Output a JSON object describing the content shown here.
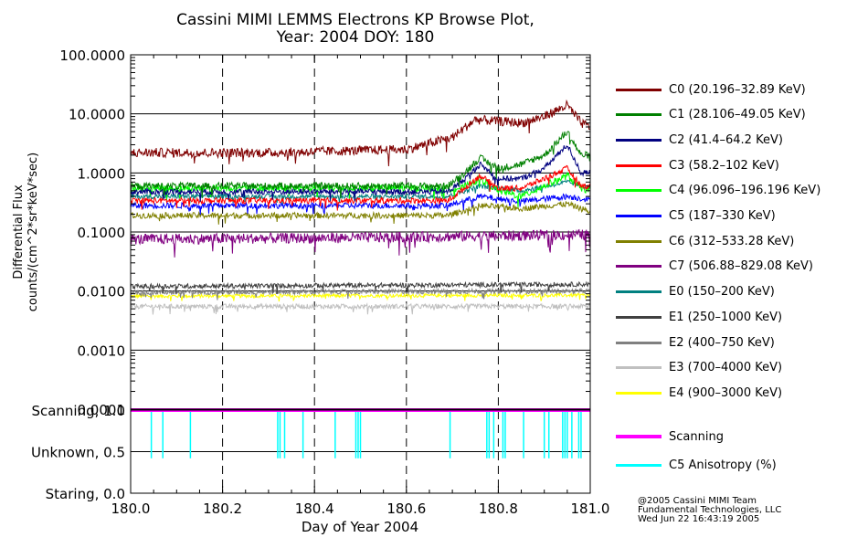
{
  "chart_data": [
    {
      "type": "line",
      "title": "Cassini MIMI LEMMS Electrons KP Browse Plot,",
      "subtitle": "Year: 2004 DOY: 180",
      "ylabel_line1": "Differential Flux",
      "ylabel_line2": "counts/(cm^2*sr*keV*sec)",
      "yscale": "log",
      "ylim": [
        0.0001,
        100
      ],
      "xlim": [
        180.0,
        181.0
      ],
      "grid": true,
      "y_tick_labels": [
        "100.0000",
        "10.0000",
        "1.0000",
        "0.1000",
        "0.0100",
        "0.0010",
        "0.0001"
      ],
      "y_tick_values": [
        100,
        10,
        1,
        0.1,
        0.01,
        0.001,
        0.0001
      ],
      "x_dashed_lines": [
        180.2,
        180.4,
        180.6,
        180.8
      ],
      "series": [
        {
          "name": "C0 (20.196–32.89 KeV)",
          "color": "#800000",
          "noise": 0.08,
          "points": [
            [
              180.0,
              2.2
            ],
            [
              180.3,
              2.2
            ],
            [
              180.6,
              2.5
            ],
            [
              180.7,
              4.0
            ],
            [
              180.75,
              8.0
            ],
            [
              180.8,
              7.5
            ],
            [
              180.85,
              7.0
            ],
            [
              180.9,
              9.0
            ],
            [
              180.95,
              14.0
            ],
            [
              180.98,
              7.0
            ],
            [
              181.0,
              6.0
            ]
          ]
        },
        {
          "name": "C1 (28.106–49.05 KeV)",
          "color": "#008000",
          "noise": 0.06,
          "points": [
            [
              180.0,
              0.6
            ],
            [
              180.69,
              0.6
            ],
            [
              180.72,
              0.9
            ],
            [
              180.76,
              1.8
            ],
            [
              180.8,
              1.2
            ],
            [
              180.85,
              1.4
            ],
            [
              180.9,
              2.0
            ],
            [
              180.95,
              5.0
            ],
            [
              180.98,
              2.0
            ],
            [
              181.0,
              2.0
            ]
          ]
        },
        {
          "name": "C2 (41.4–64.2 KeV)",
          "color": "#000080",
          "noise": 0.05,
          "points": [
            [
              180.0,
              0.48
            ],
            [
              180.69,
              0.48
            ],
            [
              180.72,
              0.7
            ],
            [
              180.76,
              1.4
            ],
            [
              180.8,
              0.8
            ],
            [
              180.85,
              0.8
            ],
            [
              180.9,
              1.2
            ],
            [
              180.95,
              3.0
            ],
            [
              180.98,
              1.0
            ],
            [
              181.0,
              1.0
            ]
          ]
        },
        {
          "name": "C3 (58.2–102 KeV)",
          "color": "#ff0000",
          "noise": 0.05,
          "points": [
            [
              180.0,
              0.34
            ],
            [
              180.69,
              0.34
            ],
            [
              180.72,
              0.5
            ],
            [
              180.76,
              0.9
            ],
            [
              180.8,
              0.55
            ],
            [
              180.85,
              0.55
            ],
            [
              180.9,
              0.8
            ],
            [
              180.95,
              1.2
            ],
            [
              180.98,
              0.6
            ],
            [
              181.0,
              0.6
            ]
          ]
        },
        {
          "name": "C4 (96.096–196.196 KeV)",
          "color": "#00ff00",
          "noise": 0.06,
          "points": [
            [
              180.0,
              0.55
            ],
            [
              180.69,
              0.55
            ],
            [
              180.72,
              0.55
            ],
            [
              180.76,
              0.8
            ],
            [
              180.8,
              0.5
            ],
            [
              180.85,
              0.4
            ],
            [
              180.9,
              0.6
            ],
            [
              180.95,
              0.9
            ],
            [
              180.98,
              0.55
            ],
            [
              181.0,
              0.5
            ]
          ]
        },
        {
          "name": "C5 (187–330 KeV)",
          "color": "#0000ff",
          "noise": 0.05,
          "points": [
            [
              180.0,
              0.28
            ],
            [
              180.69,
              0.28
            ],
            [
              180.76,
              0.4
            ],
            [
              180.85,
              0.33
            ],
            [
              180.95,
              0.4
            ],
            [
              181.0,
              0.35
            ]
          ]
        },
        {
          "name": "C6 (312–533.28 KeV)",
          "color": "#808000",
          "noise": 0.05,
          "points": [
            [
              180.0,
              0.19
            ],
            [
              180.69,
              0.19
            ],
            [
              180.76,
              0.28
            ],
            [
              180.85,
              0.25
            ],
            [
              180.95,
              0.3
            ],
            [
              181.0,
              0.22
            ]
          ]
        },
        {
          "name": "C7 (506.88–829.08 KeV)",
          "color": "#800080",
          "noise": 0.09,
          "points": [
            [
              180.0,
              0.075
            ],
            [
              180.5,
              0.08
            ],
            [
              181.0,
              0.09
            ]
          ]
        },
        {
          "name": "E0 (150–200 KeV)",
          "color": "#008080",
          "noise": 0.04,
          "points": [
            [
              180.0,
              0.4
            ],
            [
              180.69,
              0.4
            ],
            [
              180.76,
              0.6
            ],
            [
              180.85,
              0.5
            ],
            [
              180.95,
              0.7
            ],
            [
              181.0,
              0.55
            ]
          ]
        },
        {
          "name": "E1 (250–1000 KeV)",
          "color": "#404040",
          "noise": 0.04,
          "points": [
            [
              180.0,
              0.012
            ],
            [
              181.0,
              0.013
            ]
          ]
        },
        {
          "name": "E2 (400–750 KeV)",
          "color": "#808080",
          "noise": 0.04,
          "points": [
            [
              180.0,
              0.0095
            ],
            [
              181.0,
              0.01
            ]
          ]
        },
        {
          "name": "E3 (700–4000 KeV)",
          "color": "#c0c0c0",
          "noise": 0.04,
          "points": [
            [
              180.0,
              0.0055
            ],
            [
              181.0,
              0.0055
            ]
          ]
        },
        {
          "name": "E4 (900–3000 KeV)",
          "color": "#ffff00",
          "noise": 0.03,
          "points": [
            [
              180.0,
              0.0082
            ],
            [
              181.0,
              0.0085
            ]
          ]
        }
      ]
    },
    {
      "type": "line",
      "xlabel": "Day of Year 2004",
      "xlim": [
        180.0,
        181.0
      ],
      "ylim": [
        0.0,
        1.0
      ],
      "x_tick_labels": [
        "180.0",
        "180.2",
        "180.4",
        "180.6",
        "180.8",
        "181.0"
      ],
      "x_tick_values": [
        180.0,
        180.2,
        180.4,
        180.6,
        180.8,
        181.0
      ],
      "y_tick_labels": [
        "Scanning, 1.0",
        "Unknown, 0.5",
        "Staring, 0.0"
      ],
      "y_tick_values": [
        1.0,
        0.5,
        0.0
      ],
      "series": [
        {
          "name": "Scanning",
          "color": "#ff00ff",
          "value": 1.0
        },
        {
          "name": "C5 Anisotropy (%)",
          "color": "#00ffff",
          "baseline": 1.0,
          "spikes": [
            [
              180.045,
              0.42
            ],
            [
              180.07,
              0.42
            ],
            [
              180.13,
              0.42
            ],
            [
              180.32,
              0.42
            ],
            [
              180.325,
              0.42
            ],
            [
              180.335,
              0.42
            ],
            [
              180.375,
              0.42
            ],
            [
              180.445,
              0.42
            ],
            [
              180.49,
              0.42
            ],
            [
              180.495,
              0.42
            ],
            [
              180.5,
              0.42
            ],
            [
              180.695,
              0.42
            ],
            [
              180.775,
              0.42
            ],
            [
              180.78,
              0.42
            ],
            [
              180.79,
              0.42
            ],
            [
              180.81,
              0.42
            ],
            [
              180.815,
              0.42
            ],
            [
              180.855,
              0.42
            ],
            [
              180.9,
              0.42
            ],
            [
              180.91,
              0.42
            ],
            [
              180.94,
              0.42
            ],
            [
              180.945,
              0.42
            ],
            [
              180.95,
              0.42
            ],
            [
              180.96,
              0.42
            ],
            [
              180.975,
              0.42
            ],
            [
              180.98,
              0.42
            ]
          ]
        }
      ]
    }
  ],
  "credit": {
    "line1": "@2005 Cassini MIMI Team",
    "line2": "Fundamental Technologies, LLC",
    "line3": "Wed Jun 22 16:43:19 2005"
  }
}
